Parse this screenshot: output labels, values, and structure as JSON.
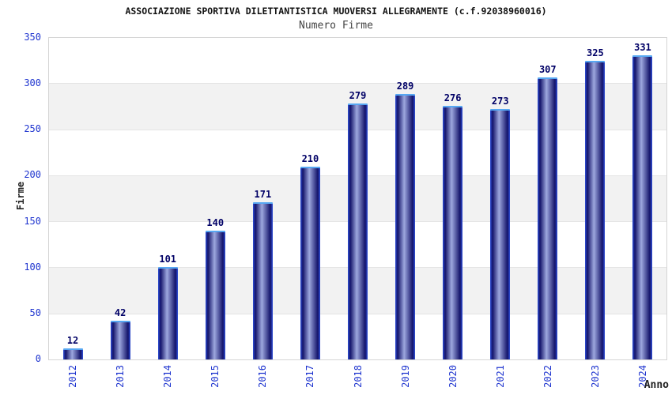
{
  "chart_data": {
    "type": "bar",
    "title": "ASSOCIAZIONE SPORTIVA DILETTANTISTICA MUOVERSI ALLEGRAMENTE (c.f.92038960016)",
    "subtitle": "Numero Firme",
    "xlabel": "Anno",
    "ylabel": "Firme",
    "categories": [
      "2012",
      "2013",
      "2014",
      "2015",
      "2016",
      "2017",
      "2018",
      "2019",
      "2020",
      "2021",
      "2022",
      "2023",
      "2024"
    ],
    "values": [
      12,
      42,
      101,
      140,
      171,
      210,
      279,
      289,
      276,
      273,
      307,
      325,
      331
    ],
    "ylim": [
      0,
      350
    ],
    "ytick_step": 50,
    "legend": "none",
    "grid": "alternating-horizontal-bands",
    "colors": {
      "bar_dark": "#13136a",
      "bar_light": "#9da7de",
      "bar_edge": "#3050d8",
      "bar_top_border": "#57a7f2",
      "tick_label": "#1f35cf",
      "value_label": "#000066",
      "band_shaded": "#f2f2f2",
      "band_plain": "#ffffff",
      "gridline": "#e4e4e4",
      "plot_border": "#d5d5d5"
    }
  }
}
